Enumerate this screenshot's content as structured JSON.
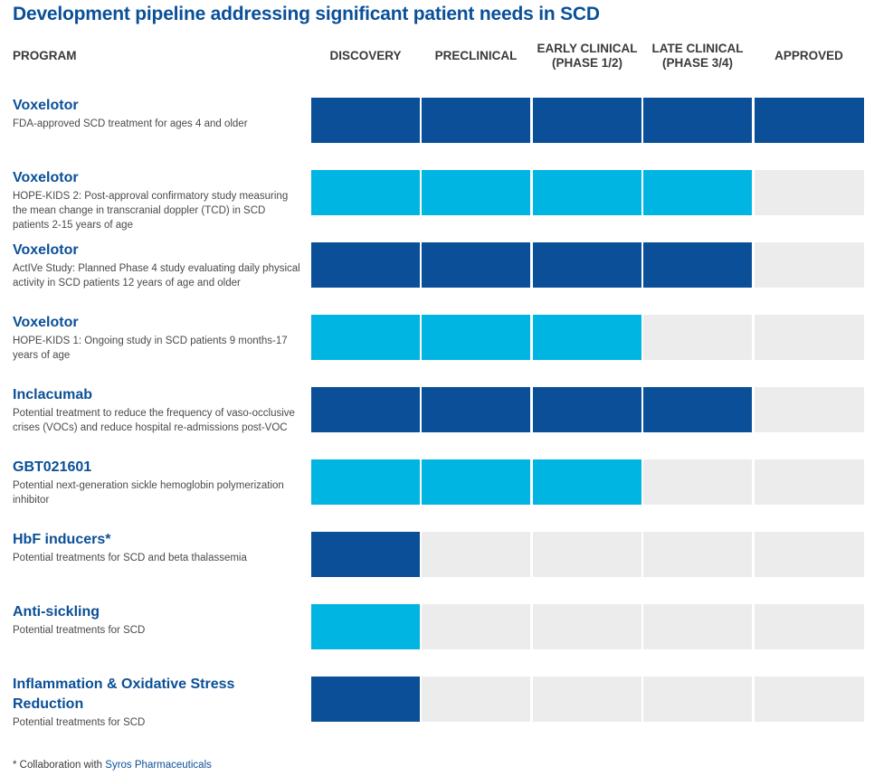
{
  "title": "Development pipeline addressing significant patient needs in SCD",
  "colors": {
    "dark": "#0a4f98",
    "light": "#00b5e2",
    "empty": "#ececec"
  },
  "chart_data": {
    "type": "table",
    "program_header": "PROGRAM",
    "stages": [
      {
        "line1": "DISCOVERY",
        "line2": ""
      },
      {
        "line1": "PRECLINICAL",
        "line2": ""
      },
      {
        "line1": "EARLY CLINICAL",
        "line2": "(PHASE 1/2)"
      },
      {
        "line1": "LATE CLINICAL",
        "line2": "(PHASE 3/4)"
      },
      {
        "line1": "APPROVED",
        "line2": ""
      }
    ],
    "programs": [
      {
        "name": "Voxelotor",
        "description": "FDA-approved SCD treatment for ages 4 and older",
        "stages_completed": 5,
        "color": "dark"
      },
      {
        "name": "Voxelotor",
        "description": "HOPE-KIDS 2: Post-approval confirmatory study measuring the mean change in transcranial doppler (TCD) in SCD patients 2-15 years of age",
        "stages_completed": 4,
        "color": "light"
      },
      {
        "name": "Voxelotor",
        "description": "ActIVe Study: Planned Phase 4 study evaluating daily physical activity in SCD patients 12 years of age and older",
        "stages_completed": 4,
        "color": "dark"
      },
      {
        "name": "Voxelotor",
        "description": "HOPE-KIDS 1: Ongoing study in SCD patients 9 months-17 years of age",
        "stages_completed": 3,
        "color": "light"
      },
      {
        "name": "Inclacumab",
        "description": "Potential treatment to reduce the frequency of vaso-occlusive crises (VOCs) and reduce hospital re-admissions post-VOC",
        "stages_completed": 4,
        "color": "dark"
      },
      {
        "name": "GBT021601",
        "description": "Potential next-generation sickle hemoglobin polymerization inhibitor",
        "stages_completed": 3,
        "color": "light"
      },
      {
        "name": "HbF inducers*",
        "description": "Potential treatments for SCD and beta thalassemia",
        "stages_completed": 1,
        "color": "dark"
      },
      {
        "name": "Anti-sickling",
        "description": "Potential treatments for SCD",
        "stages_completed": 1,
        "color": "light"
      },
      {
        "name": "Inflammation & Oxidative Stress Reduction",
        "description": "Potential treatments for SCD",
        "stages_completed": 1,
        "color": "dark"
      }
    ]
  },
  "footnote": {
    "prefix": "* Collaboration with ",
    "link": "Syros Pharmaceuticals"
  }
}
